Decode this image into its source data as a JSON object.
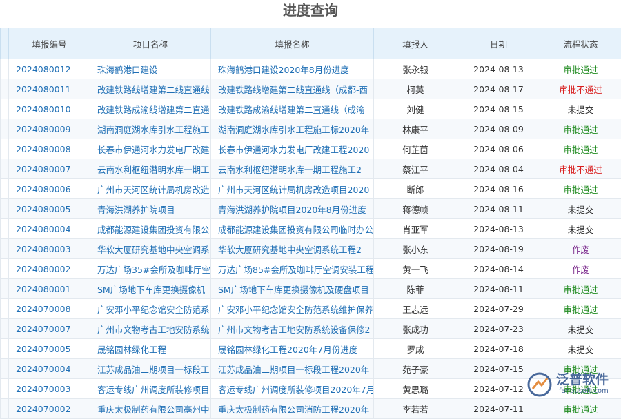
{
  "header": {
    "title": "进度查询"
  },
  "table": {
    "columns": [
      "填报编号",
      "项目名称",
      "填报名称",
      "填报人",
      "日期",
      "流程状态"
    ],
    "status_colors": {
      "审批通过": "#1f8a1f",
      "审批不通过": "#d81e1e",
      "未提交": "#222222",
      "作废": "#7b2a8c"
    },
    "rows": [
      [
        "2024080012",
        "珠海鹤港口建设",
        "珠海鹤港口建设2020年8月份进度",
        "张永银",
        "2024-08-13",
        "审批通过"
      ],
      [
        "2024080011",
        "改建铁路线增建第二线直通线",
        "改建铁路线增建第二线直通线（成都-西",
        "柯英",
        "2024-08-17",
        "审批不通过"
      ],
      [
        "2024080010",
        "改建铁路成渝线增建第二直通",
        "改建铁路成渝线增建第二直通线（成渝",
        "刘健",
        "2024-08-15",
        "未提交"
      ],
      [
        "2024080009",
        "湖南洞庭湖水库引水工程施工",
        "湖南洞庭湖水库引水工程施工标2020年",
        "林康平",
        "2024-08-09",
        "审批通过"
      ],
      [
        "2024080008",
        "长春市伊通河水力发电厂改建",
        "长春市伊通河水力发电厂改建工程2020",
        "何芷茵",
        "2024-08-06",
        "审批通过"
      ],
      [
        "2024080007",
        "云南水利枢纽潜明水库一期工",
        "云南水利枢纽潜明水库一期工程施工2",
        "蔡江平",
        "2024-08-04",
        "审批不通过"
      ],
      [
        "2024080006",
        "广州市天河区统计局机房改造",
        "广州市天河区统计局机房改造项目2020",
        "断郎",
        "2024-08-16",
        "审批通过"
      ],
      [
        "2024080005",
        "青海洪湖养护院项目",
        "青海洪湖养护院项目2020年8月份进度",
        "蒋德帧",
        "2024-08-11",
        "未提交"
      ],
      [
        "2024080004",
        "成都能源建设集团投资有限公",
        "成都能源建设集团投资有限公司临时办公",
        "肖亚军",
        "2024-08-13",
        "未提交"
      ],
      [
        "2024080003",
        "华软大厦研究基地中央空调系",
        "华软大厦研究基地中央空调系统工程2",
        "张小东",
        "2024-08-19",
        "作废"
      ],
      [
        "2024080002",
        "万达广场35#会所及咖啡厅空",
        "万达广场85#会所及咖啡厅空调安装工程",
        "黄一飞",
        "2024-08-14",
        "作废"
      ],
      [
        "2024080001",
        "SM广场地下车库更换摄像机",
        "SM广场地下车库更换摄像机及硬盘项目",
        "陈菲",
        "2024-08-11",
        "审批通过"
      ],
      [
        "2024070008",
        "广安邓小平纪念馆安全防范系",
        "广安邓小平纪念馆安全防范系统维护保养",
        "王志远",
        "2024-07-29",
        "审批通过"
      ],
      [
        "2024070007",
        "广州市文物考古工地安防系统",
        "广州市文物考古工地安防系统设备保修2",
        "张成功",
        "2024-07-23",
        "未提交"
      ],
      [
        "2024070005",
        "晟铭园林绿化工程",
        "晟铭园林绿化工程2020年7月份进度",
        "罗成",
        "2024-07-18",
        "未提交"
      ],
      [
        "2024070004",
        "江苏成品油二期项目一标段工",
        "江苏成品油二期项目一标段工程2020年",
        "苑子豪",
        "2024-07-15",
        "审批通过"
      ],
      [
        "2024070003",
        "客运专线广州调度所装修项目",
        "客运专线广州调度所装修项目2020年7月",
        "黄思璐",
        "2024-07-12",
        "审批通过"
      ],
      [
        "2024070002",
        "重庆太极制药有限公司亳州中",
        "重庆太极制药有限公司消防工程2020年",
        "李若若",
        "2024-07-11",
        "审批通过"
      ]
    ]
  },
  "watermark": {
    "brand": "泛普软件",
    "url": "fanpusoft.com"
  }
}
